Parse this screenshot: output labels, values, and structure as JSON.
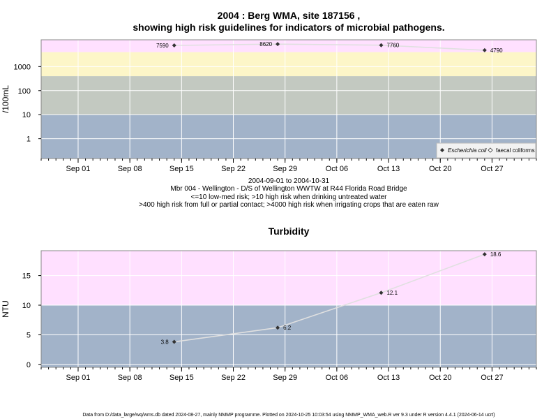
{
  "title_line1": "2004 : Berg WMA, site 187156 ,",
  "title_line2": "showing high risk guidelines for indicators of microbial pathogens.",
  "caption": [
    "2004-09-01 to 2004-10-31",
    "Mbr 004 - Wellington - D/S of Wellington WWTW at R44 Florida Road Bridge",
    "<=10 low-med risk; >10 high risk when drinking untreated water",
    ">400 high risk from full or partial contact; >4000 high risk when irrigating crops that are eaten raw"
  ],
  "footer": "Data from D:/data_large/wq/wms.db dated 2024-08-27, mainly NMMP programme. Plotted on 2024-10-25 10:03:54 using NMMP_WMA_web.R ver 9.3 under R version 4.4.1 (2024-06-14 ucrt)",
  "colors": {
    "low": "#a2b3c9",
    "mid": "#c3c9c1",
    "high": "#fdf6c8",
    "veryhigh": "#ffe0ff",
    "line": "#e0e0e0",
    "grid": "#ffffff",
    "point": "#333333"
  },
  "chart_data": [
    {
      "type": "line",
      "title": "",
      "ylabel": "/100mL",
      "xlabel": "",
      "scale": "log",
      "ylim": [
        0.15,
        13000
      ],
      "xlim": [
        "2004-08-27",
        "2004-11-02"
      ],
      "x_ticks": [
        "Sep 01",
        "Sep 08",
        "Sep 15",
        "Sep 22",
        "Sep 29",
        "Oct 06",
        "Oct 13",
        "Oct 20",
        "Oct 27"
      ],
      "x_tick_dates": [
        "2004-09-01",
        "2004-09-08",
        "2004-09-15",
        "2004-09-22",
        "2004-09-29",
        "2004-10-06",
        "2004-10-13",
        "2004-10-20",
        "2004-10-27"
      ],
      "y_ticks": [
        1,
        10,
        100,
        1000
      ],
      "y_tick_labels": [
        "1",
        "10",
        "100",
        "1000"
      ],
      "bands": [
        {
          "from": 0.15,
          "to": 10,
          "color": "#a2b3c9"
        },
        {
          "from": 10,
          "to": 400,
          "color": "#c3c9c1"
        },
        {
          "from": 400,
          "to": 4000,
          "color": "#fdf6c8"
        },
        {
          "from": 4000,
          "to": 13000,
          "color": "#ffe0ff"
        }
      ],
      "series": [
        {
          "name": "Escherichia coli",
          "x": [
            "2004-09-14",
            "2004-09-28",
            "2004-10-12",
            "2004-10-26"
          ],
          "y": [
            7590,
            8620,
            7760,
            4790
          ],
          "labels": [
            "7590",
            "8620",
            "7760",
            "4790"
          ]
        }
      ],
      "legend": {
        "position": "bottom-right",
        "items": [
          "Escherichia coli",
          "faecal coliforms"
        ]
      }
    },
    {
      "type": "line",
      "title": "Turbidity",
      "ylabel": "NTU",
      "xlabel": "",
      "scale": "linear",
      "ylim": [
        -0.5,
        19.2
      ],
      "xlim": [
        "2004-08-27",
        "2004-11-02"
      ],
      "x_ticks": [
        "Sep 01",
        "Sep 08",
        "Sep 15",
        "Sep 22",
        "Sep 29",
        "Oct 06",
        "Oct 13",
        "Oct 20",
        "Oct 27"
      ],
      "x_tick_dates": [
        "2004-09-01",
        "2004-09-08",
        "2004-09-15",
        "2004-09-22",
        "2004-09-29",
        "2004-10-06",
        "2004-10-13",
        "2004-10-20",
        "2004-10-27"
      ],
      "y_ticks": [
        0,
        5,
        10,
        15
      ],
      "y_tick_labels": [
        "0",
        "5",
        "10",
        "15"
      ],
      "bands": [
        {
          "from": -0.5,
          "to": 10,
          "color": "#a2b3c9"
        },
        {
          "from": 10,
          "to": 19.2,
          "color": "#ffe0ff"
        }
      ],
      "series": [
        {
          "name": "",
          "x": [
            "2004-09-14",
            "2004-09-28",
            "2004-10-12",
            "2004-10-26"
          ],
          "y": [
            3.8,
            6.2,
            12.1,
            18.6
          ],
          "labels": [
            "3.8",
            "6.2",
            "12.1",
            "18.6"
          ]
        }
      ]
    }
  ]
}
